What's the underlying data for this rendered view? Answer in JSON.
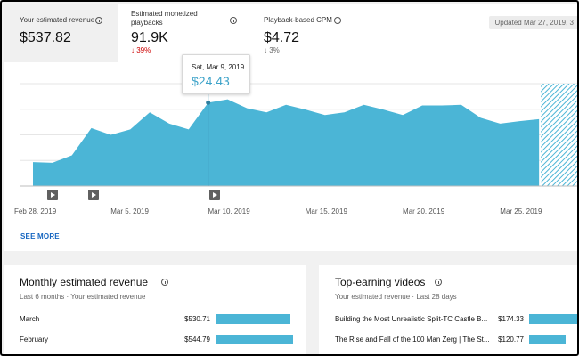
{
  "metrics": [
    {
      "label": "Your estimated revenue",
      "value": "$537.82",
      "delta": ""
    },
    {
      "label": "Estimated monetized playbacks",
      "value": "91.9K",
      "delta": "39%",
      "delta_direction": "down",
      "delta_color": "#cc0000"
    },
    {
      "label": "Playback-based CPM",
      "value": "$4.72",
      "delta": "3%",
      "delta_direction": "down",
      "delta_color": "#666666"
    }
  ],
  "updated_text": "Updated Mar 27, 2019, 3",
  "chart_data": {
    "type": "area",
    "title": "",
    "xlabel": "",
    "ylabel": "",
    "x": [
      "Feb 28",
      "Mar 1",
      "Mar 2",
      "Mar 3",
      "Mar 4",
      "Mar 5",
      "Mar 6",
      "Mar 7",
      "Mar 8",
      "Mar 9",
      "Mar 10",
      "Mar 11",
      "Mar 12",
      "Mar 13",
      "Mar 14",
      "Mar 15",
      "Mar 16",
      "Mar 17",
      "Mar 18",
      "Mar 19",
      "Mar 20",
      "Mar 21",
      "Mar 22",
      "Mar 23",
      "Mar 24",
      "Mar 25",
      "Mar 26",
      "Mar 27"
    ],
    "series": [
      {
        "name": "",
        "values": [
          7.0,
          6.8,
          9.0,
          17.0,
          15.0,
          16.6,
          21.6,
          18.3,
          16.6,
          24.43,
          25.4,
          22.8,
          21.6,
          23.8,
          22.4,
          20.8,
          21.6,
          23.8,
          22.4,
          20.8,
          23.6,
          23.6,
          23.8,
          20.0,
          18.3,
          19.0,
          19.6,
          19.0
        ]
      }
    ],
    "x_tick_labels": [
      "Feb 28, 2019",
      "Mar 5, 2019",
      "Mar 10, 2019",
      "Mar 15, 2019",
      "Mar 20, 2019",
      "Mar 25, 2019"
    ],
    "ylim": [
      0,
      30
    ],
    "grid": true,
    "partial_last_day": true,
    "color": "#4bb5d6"
  },
  "tooltip": {
    "date": "Sat, Mar 9, 2019",
    "value": "$24.43",
    "index": 9
  },
  "video_markers": [
    1,
    3,
    9
  ],
  "see_more": "SEE MORE",
  "monthly_card": {
    "title": "Monthly estimated revenue",
    "subtitle": "Last 6 months · Your estimated revenue",
    "rows": [
      {
        "label": "March",
        "value": "$530.71",
        "share": 0.96
      },
      {
        "label": "February",
        "value": "$544.79",
        "share": 0.99
      }
    ]
  },
  "videos_card": {
    "title": "Top-earning videos",
    "subtitle": "Your estimated revenue · Last 28 days",
    "rows": [
      {
        "label": "Building the Most Unrealistic Split-TC Castle B...",
        "value": "$174.33",
        "share": 1.0
      },
      {
        "label": "The Rise and Fall of the 100 Man Zerg | The St...",
        "value": "$120.77",
        "share": 0.69
      }
    ]
  }
}
